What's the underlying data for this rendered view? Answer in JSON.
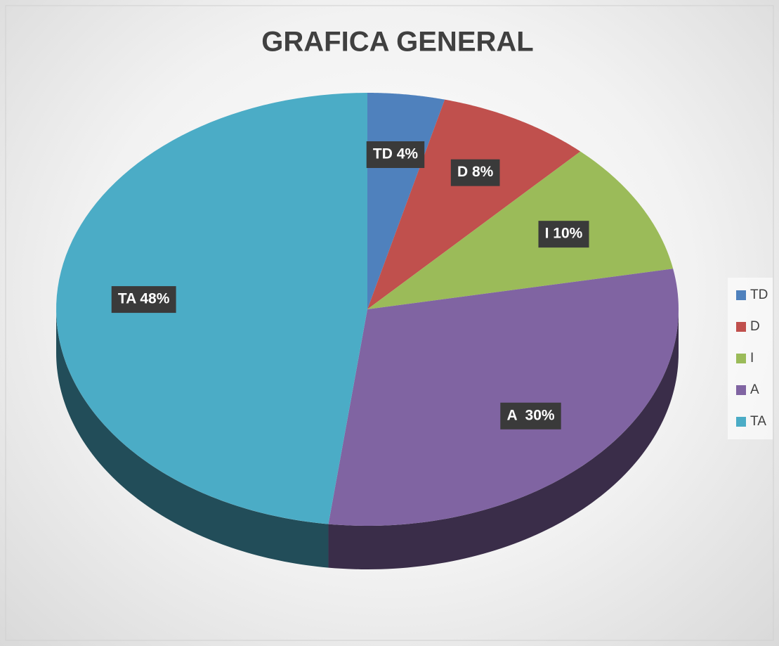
{
  "chart_data": {
    "type": "pie",
    "title": "GRAFICA GENERAL",
    "categories": [
      "TD",
      "D",
      "I",
      "A",
      "TA"
    ],
    "values": [
      4,
      8,
      10,
      30,
      48
    ],
    "value_labels": [
      "TD 4%",
      "D 8%",
      "I 10%",
      "A  30%",
      "TA 48%"
    ],
    "colors": [
      "#4f81bd",
      "#c0504d",
      "#9bbb59",
      "#8064a2",
      "#4bacc6"
    ],
    "legend": "right"
  }
}
